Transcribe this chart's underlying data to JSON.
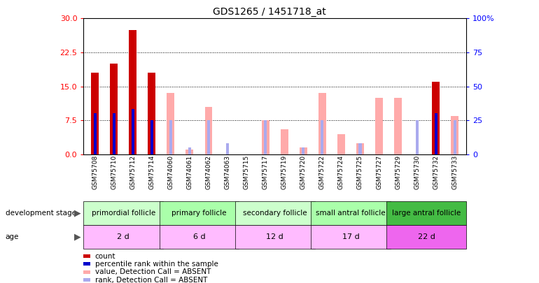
{
  "title": "GDS1265 / 1451718_at",
  "samples": [
    "GSM75708",
    "GSM75710",
    "GSM75712",
    "GSM75714",
    "GSM74060",
    "GSM74061",
    "GSM74062",
    "GSM74063",
    "GSM75715",
    "GSM75717",
    "GSM75719",
    "GSM75720",
    "GSM75722",
    "GSM75724",
    "GSM75725",
    "GSM75727",
    "GSM75729",
    "GSM75730",
    "GSM75732",
    "GSM75733"
  ],
  "count_values": [
    18,
    20,
    27.5,
    18,
    0,
    0,
    0,
    0,
    0,
    0,
    0,
    0,
    0,
    0,
    0,
    0,
    0,
    0,
    16,
    0
  ],
  "rank_values": [
    9,
    9,
    10,
    7.5,
    0,
    0,
    0,
    0,
    0,
    0,
    0,
    0,
    0,
    0,
    0,
    0,
    0,
    0,
    9,
    0
  ],
  "absent_value_values": [
    0,
    0,
    0,
    0,
    13.5,
    1.0,
    10.5,
    0,
    0,
    7.5,
    5.5,
    1.5,
    13.5,
    4.5,
    2.5,
    12.5,
    12.5,
    0,
    0,
    8.5
  ],
  "absent_rank_values": [
    0,
    0,
    0,
    0,
    7.5,
    1.5,
    7.5,
    2.5,
    0,
    7.5,
    0,
    1.5,
    7.5,
    0,
    2.5,
    0,
    0,
    7.5,
    0,
    7.5
  ],
  "count_color": "#cc0000",
  "rank_color": "#0000cc",
  "absent_value_color": "#ffaaaa",
  "absent_rank_color": "#aaaaee",
  "ylim_left": [
    0,
    30
  ],
  "ylim_right": [
    0,
    100
  ],
  "yticks_left": [
    0,
    7.5,
    15,
    22.5,
    30
  ],
  "yticks_right": [
    0,
    25,
    50,
    75,
    100
  ],
  "groups": [
    {
      "label": "primordial follicle",
      "start": 0,
      "end": 4,
      "bg_color": "#ccffcc",
      "age": "2 d",
      "age_color": "#ffbbff"
    },
    {
      "label": "primary follicle",
      "start": 4,
      "end": 8,
      "bg_color": "#aaffaa",
      "age": "6 d",
      "age_color": "#ffbbff"
    },
    {
      "label": "secondary follicle",
      "start": 8,
      "end": 12,
      "bg_color": "#ccffcc",
      "age": "12 d",
      "age_color": "#ffbbff"
    },
    {
      "label": "small antral follicle",
      "start": 12,
      "end": 16,
      "bg_color": "#aaffaa",
      "age": "17 d",
      "age_color": "#ffbbff"
    },
    {
      "label": "large antral follicle",
      "start": 16,
      "end": 20,
      "bg_color": "#55cc55",
      "age": "22 d",
      "age_color": "#ee88ee"
    }
  ],
  "legend_items": [
    {
      "label": "count",
      "color": "#cc0000"
    },
    {
      "label": "percentile rank within the sample",
      "color": "#0000cc"
    },
    {
      "label": "value, Detection Call = ABSENT",
      "color": "#ffaaaa"
    },
    {
      "label": "rank, Detection Call = ABSENT",
      "color": "#aaaaee"
    }
  ],
  "bar_width": 0.4,
  "rank_bar_width": 0.15,
  "xticklabel_bg": "#cccccc"
}
